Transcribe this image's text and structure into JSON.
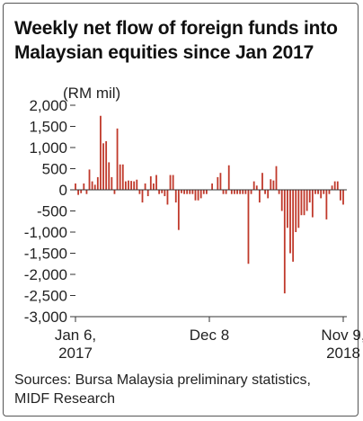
{
  "title": "Weekly net flow of foreign funds into Malaysian equities since Jan 2017",
  "source": "Sources: Bursa Malaysia preliminary statistics, MIDF Research",
  "colors": {
    "bar": "#c0392b",
    "axis": "#333333",
    "text": "#222222"
  },
  "chart_data": {
    "type": "bar",
    "title": "Weekly net flow of foreign funds into Malaysian equities since Jan 2017",
    "ylabel": "(RM mil)",
    "xlabel": "",
    "ylim": [
      -3000,
      2000
    ],
    "yticks": [
      2000,
      1500,
      1000,
      500,
      0,
      -500,
      -1000,
      -1500,
      -2000,
      -2500,
      -3000
    ],
    "ytick_labels": [
      "2,000",
      "1,500",
      "1,000",
      "500",
      "0",
      "-500",
      "-1,000",
      "-1,500",
      "-2,000",
      "-2,500",
      "-3,000"
    ],
    "x_start": "2017-01-06",
    "x_end": "2018-11-09",
    "x_tick_labels": [
      {
        "date": "2017-01-06",
        "line1": "Jan 6,",
        "line2": "2017"
      },
      {
        "date": "2017-12-08",
        "line1": "Dec 8",
        "line2": ""
      },
      {
        "date": "2018-11-09",
        "line1": "Nov 9,",
        "line2": "2018"
      }
    ],
    "x": [
      "2017-01-06",
      "2017-01-13",
      "2017-01-20",
      "2017-01-27",
      "2017-02-03",
      "2017-02-10",
      "2017-02-17",
      "2017-02-24",
      "2017-03-03",
      "2017-03-10",
      "2017-03-17",
      "2017-03-24",
      "2017-03-31",
      "2017-04-07",
      "2017-04-14",
      "2017-04-21",
      "2017-04-28",
      "2017-05-05",
      "2017-05-12",
      "2017-05-19",
      "2017-05-26",
      "2017-06-02",
      "2017-06-09",
      "2017-06-16",
      "2017-06-23",
      "2017-06-30",
      "2017-07-07",
      "2017-07-14",
      "2017-07-21",
      "2017-07-28",
      "2017-08-04",
      "2017-08-11",
      "2017-08-18",
      "2017-08-25",
      "2017-09-01",
      "2017-09-08",
      "2017-09-15",
      "2017-09-22",
      "2017-09-29",
      "2017-10-06",
      "2017-10-13",
      "2017-10-20",
      "2017-10-27",
      "2017-11-03",
      "2017-11-10",
      "2017-11-17",
      "2017-11-24",
      "2017-12-01",
      "2017-12-08",
      "2017-12-15",
      "2017-12-22",
      "2017-12-29",
      "2018-01-05",
      "2018-01-12",
      "2018-01-19",
      "2018-01-26",
      "2018-02-02",
      "2018-02-09",
      "2018-02-16",
      "2018-02-23",
      "2018-03-02",
      "2018-03-09",
      "2018-03-16",
      "2018-03-23",
      "2018-03-30",
      "2018-04-06",
      "2018-04-13",
      "2018-04-20",
      "2018-04-27",
      "2018-05-04",
      "2018-05-11",
      "2018-05-18",
      "2018-05-25",
      "2018-06-01",
      "2018-06-08",
      "2018-06-15",
      "2018-06-22",
      "2018-06-29",
      "2018-07-06",
      "2018-07-13",
      "2018-07-20",
      "2018-07-27",
      "2018-08-03",
      "2018-08-10",
      "2018-08-17",
      "2018-08-24",
      "2018-08-31",
      "2018-09-07",
      "2018-09-14",
      "2018-09-21",
      "2018-09-28",
      "2018-10-05",
      "2018-10-12",
      "2018-10-19",
      "2018-10-26",
      "2018-11-02",
      "2018-11-09"
    ],
    "values": [
      150,
      -120,
      -80,
      150,
      -100,
      480,
      200,
      120,
      300,
      1750,
      1100,
      1150,
      650,
      300,
      -100,
      1450,
      600,
      600,
      200,
      220,
      210,
      200,
      240,
      -100,
      -300,
      150,
      -150,
      320,
      150,
      350,
      -100,
      -80,
      -150,
      -350,
      350,
      350,
      -300,
      -950,
      -80,
      -100,
      -100,
      -100,
      -100,
      -250,
      -250,
      -200,
      -100,
      -100,
      0,
      150,
      0,
      300,
      400,
      -100,
      -100,
      580,
      -100,
      -100,
      -100,
      -100,
      -100,
      -100,
      -1750,
      -100,
      200,
      100,
      -300,
      400,
      -100,
      -200,
      250,
      220,
      560,
      -100,
      -500,
      -2450,
      -900,
      -1500,
      -1700,
      -1000,
      -900,
      -600,
      -600,
      -500,
      -300,
      -650,
      -100,
      -100,
      -200,
      -100,
      -700,
      -100,
      100,
      200,
      200,
      -250,
      -350
    ]
  }
}
